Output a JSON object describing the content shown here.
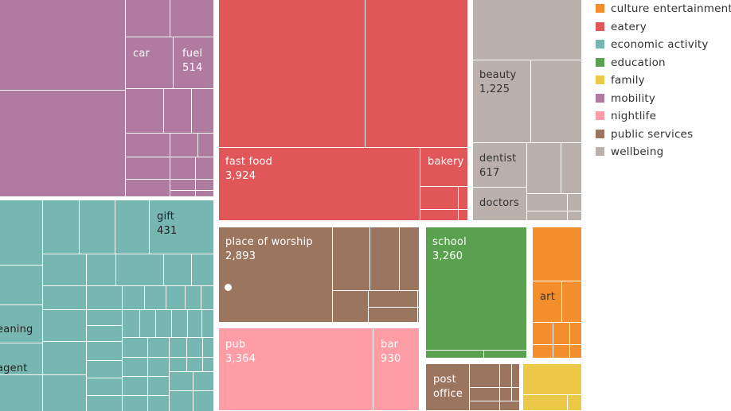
{
  "chart_data": {
    "type": "treemap",
    "legend": {
      "position": "right",
      "items": [
        {
          "label": "culture entertainment",
          "color": "#F28E2B"
        },
        {
          "label": "eatery",
          "color": "#E15759"
        },
        {
          "label": "economic activity",
          "color": "#76B7B2"
        },
        {
          "label": "education",
          "color": "#59A14F"
        },
        {
          "label": "family",
          "color": "#EDC948"
        },
        {
          "label": "mobility",
          "color": "#B07AA1"
        },
        {
          "label": "nightlife",
          "color": "#FF9DA7"
        },
        {
          "label": "public services",
          "color": "#9C755F"
        },
        {
          "label": "wellbeing",
          "color": "#BAB0AC"
        }
      ]
    },
    "labeled_leaves": [
      {
        "category": "mobility",
        "name": "car",
        "value": null
      },
      {
        "category": "mobility",
        "name": "fuel",
        "value": 514
      },
      {
        "category": "economic activity",
        "name": "gift",
        "value": 431
      },
      {
        "category": "economic activity",
        "name": "eaning",
        "value": null
      },
      {
        "category": "economic activity",
        "name": "agent",
        "value": null
      },
      {
        "category": "eatery",
        "name": "fast food",
        "value": 3924
      },
      {
        "category": "eatery",
        "name": "bakery",
        "value": null
      },
      {
        "category": "wellbeing",
        "name": "beauty",
        "value": 1225
      },
      {
        "category": "wellbeing",
        "name": "dentist",
        "value": 617
      },
      {
        "category": "wellbeing",
        "name": "doctors",
        "value": null
      },
      {
        "category": "public services",
        "name": "place of worship",
        "value": 2893
      },
      {
        "category": "public services",
        "name": "post office",
        "value": null
      },
      {
        "category": "education",
        "name": "school",
        "value": 3260
      },
      {
        "category": "culture entertainment",
        "name": "art",
        "value": null
      },
      {
        "category": "nightlife",
        "name": "pub",
        "value": 3364
      },
      {
        "category": "nightlife",
        "name": "bar",
        "value": 930
      }
    ]
  }
}
